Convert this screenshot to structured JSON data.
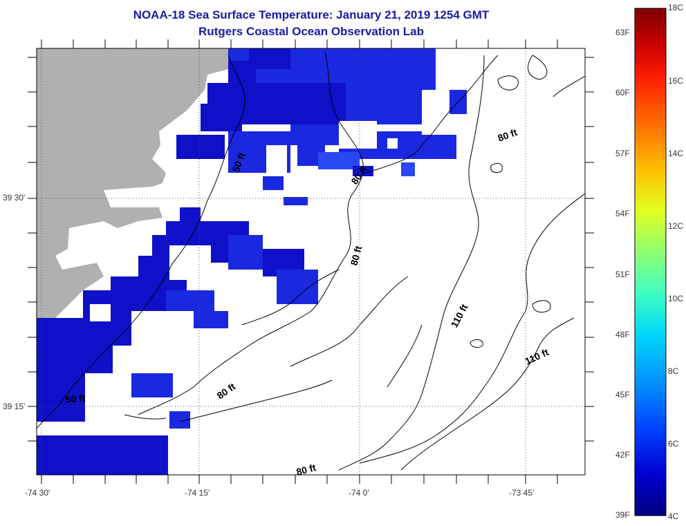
{
  "header": {
    "title": "NOAA-18 Sea Surface Temperature:  January 21, 2019 1254 GMT",
    "subtitle": "Rutgers Coastal Ocean Observation Lab"
  },
  "map": {
    "lat_labels": [
      "39 30'",
      "39 15'"
    ],
    "lon_labels": [
      "-74 30'",
      "-74 15'",
      "-74 0'",
      "-73 45'"
    ],
    "contour_labels": [
      "50 ft",
      "80 ft",
      "80 ft",
      "80 ft",
      "50 ft",
      "80 ft",
      "110 ft",
      "110 ft",
      "80 ft"
    ],
    "colors": {
      "land": "#b0b0b0",
      "sst_dark": "#1010c8",
      "sst_mid": "#1a28e0",
      "sst_light": "#2a48f0",
      "contour": "#000000"
    }
  },
  "colorbar": {
    "f_labels": [
      "63F",
      "60F",
      "57F",
      "54F",
      "51F",
      "48F",
      "45F",
      "42F",
      "39F"
    ],
    "c_labels": [
      "18C",
      "16C",
      "14C",
      "12C",
      "10C",
      "8C",
      "6C",
      "4C"
    ],
    "min_c": 4,
    "max_c": 18,
    "palette": [
      "#00007f",
      "#0000d0",
      "#0040ff",
      "#0090ff",
      "#00d8f8",
      "#40ffc0",
      "#90ff70",
      "#e0ff20",
      "#ffc000",
      "#ff7000",
      "#ff2000",
      "#c80000",
      "#800000"
    ]
  }
}
